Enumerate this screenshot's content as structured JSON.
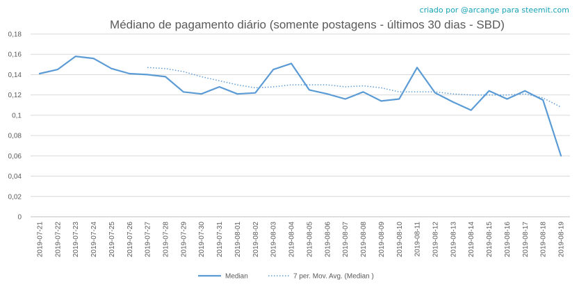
{
  "credit": "criado por @arcange para steemit.com",
  "chart_data": {
    "type": "line",
    "title": "Médiano de pagamento diário (somente postagens - últimos 30 dias - SBD)",
    "xlabel": "",
    "ylabel": "",
    "ylim": [
      0,
      0.18
    ],
    "yticks": [
      "0",
      "0,02",
      "0,04",
      "0,06",
      "0,08",
      "0,1",
      "0,12",
      "0,14",
      "0,16",
      "0,18"
    ],
    "grid": true,
    "legend_position": "bottom",
    "categories": [
      "2019-07-21",
      "2019-07-22",
      "2019-07-23",
      "2019-07-24",
      "2019-07-25",
      "2019-07-26",
      "2019-07-27",
      "2019-07-28",
      "2019-07-29",
      "2019-07-30",
      "2019-07-31",
      "2019-08-01",
      "2019-08-02",
      "2019-08-03",
      "2019-08-04",
      "2019-08-05",
      "2019-08-06",
      "2019-08-07",
      "2019-08-08",
      "2019-08-09",
      "2019-08-10",
      "2019-08-11",
      "2019-08-12",
      "2019-08-13",
      "2019-08-14",
      "2019-08-15",
      "2019-08-16",
      "2019-08-17",
      "2019-08-18",
      "2019-08-19"
    ],
    "series": [
      {
        "name": "Median",
        "style": "solid",
        "color": "#5b9bd5",
        "values": [
          0.141,
          0.145,
          0.158,
          0.156,
          0.146,
          0.141,
          0.14,
          0.138,
          0.123,
          0.121,
          0.128,
          0.121,
          0.122,
          0.145,
          0.151,
          0.125,
          0.121,
          0.116,
          0.123,
          0.114,
          0.116,
          0.147,
          0.122,
          0.113,
          0.105,
          0.124,
          0.116,
          0.124,
          0.115,
          0.06
        ]
      },
      {
        "name": "7 per. Mov. Avg. (Median )",
        "style": "dotted",
        "color": "#5b9bd5",
        "values": [
          null,
          null,
          null,
          null,
          null,
          null,
          0.147,
          0.146,
          0.143,
          0.138,
          0.134,
          0.13,
          0.127,
          0.128,
          0.13,
          0.13,
          0.13,
          0.128,
          0.129,
          0.127,
          0.123,
          0.123,
          0.123,
          0.121,
          0.12,
          0.12,
          0.12,
          0.121,
          0.117,
          0.108
        ]
      }
    ]
  }
}
